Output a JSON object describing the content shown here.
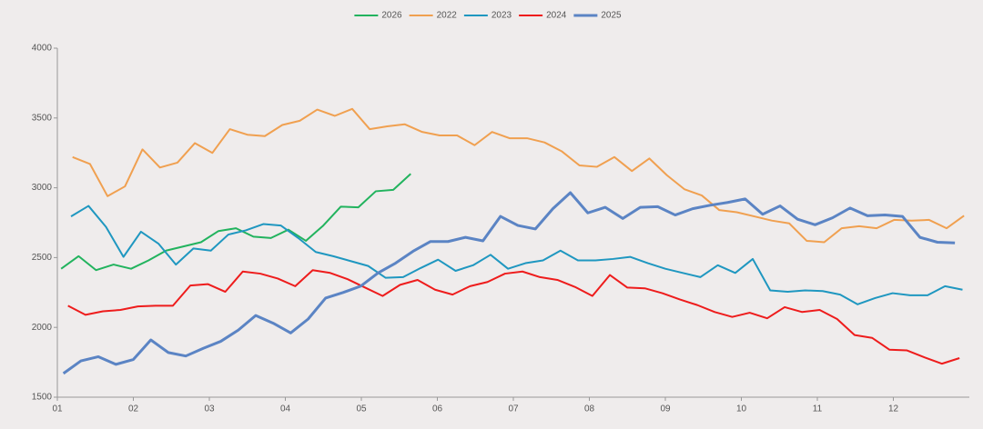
{
  "chart_data": {
    "type": "line",
    "xlim": [
      1,
      13
    ],
    "xticks": [
      {
        "value": 1,
        "label": "01"
      },
      {
        "value": 2,
        "label": "02"
      },
      {
        "value": 3,
        "label": "03"
      },
      {
        "value": 4,
        "label": "04"
      },
      {
        "value": 5,
        "label": "05"
      },
      {
        "value": 6,
        "label": "06"
      },
      {
        "value": 7,
        "label": "07"
      },
      {
        "value": 8,
        "label": "08"
      },
      {
        "value": 9,
        "label": "09"
      },
      {
        "value": 10,
        "label": "10"
      },
      {
        "value": 11,
        "label": "11"
      },
      {
        "value": 12,
        "label": "12"
      }
    ],
    "ylim": [
      1500,
      4000
    ],
    "yticks": [
      1500,
      2000,
      2500,
      3000,
      3500,
      4000
    ],
    "legend": "top",
    "series": [
      {
        "name": "2026",
        "color": "#22b35e",
        "width": 2,
        "x": [
          1.05,
          1.28,
          1.51,
          1.74,
          1.97,
          2.2,
          2.43,
          2.66,
          2.89,
          3.12,
          3.35,
          3.58,
          3.81,
          4.04,
          4.27,
          4.5,
          4.73,
          4.96,
          5.19,
          5.42,
          5.65
        ],
        "values": [
          2420,
          2510,
          2410,
          2450,
          2420,
          2480,
          2550,
          2580,
          2610,
          2690,
          2710,
          2650,
          2640,
          2700,
          2620,
          2730,
          2865,
          2860,
          2975,
          2985,
          3100
        ]
      },
      {
        "name": "2022",
        "color": "#f0a050",
        "width": 2,
        "x": [
          1.2,
          1.43,
          1.66,
          1.89,
          2.12,
          2.35,
          2.58,
          2.81,
          3.04,
          3.27,
          3.5,
          3.73,
          3.96,
          4.19,
          4.42,
          4.65,
          4.88,
          5.11,
          5.34,
          5.57,
          5.8,
          6.03,
          6.26,
          6.49,
          6.72,
          6.95,
          7.18,
          7.41,
          7.64,
          7.87,
          8.1,
          8.33,
          8.56,
          8.79,
          9.02,
          9.25,
          9.48,
          9.71,
          9.94,
          10.17,
          10.4,
          10.63,
          10.86,
          11.09,
          11.32,
          11.55,
          11.78,
          12.01,
          12.24,
          12.47,
          12.7,
          12.93
        ],
        "values": [
          3220,
          3170,
          2940,
          3010,
          3275,
          3145,
          3180,
          3320,
          3250,
          3420,
          3380,
          3370,
          3450,
          3480,
          3560,
          3515,
          3565,
          3420,
          3440,
          3455,
          3400,
          3375,
          3375,
          3305,
          3400,
          3355,
          3355,
          3325,
          3260,
          3160,
          3150,
          3220,
          3120,
          3210,
          3090,
          2990,
          2945,
          2840,
          2825,
          2795,
          2765,
          2745,
          2620,
          2610,
          2710,
          2725,
          2710,
          2770,
          2765,
          2770,
          2710,
          2800
        ]
      },
      {
        "name": "2023",
        "color": "#1f97c0",
        "width": 2,
        "x": [
          1.18,
          1.41,
          1.64,
          1.87,
          2.1,
          2.33,
          2.56,
          2.79,
          3.02,
          3.25,
          3.48,
          3.71,
          3.94,
          4.17,
          4.4,
          4.63,
          4.86,
          5.09,
          5.32,
          5.55,
          5.78,
          6.01,
          6.24,
          6.47,
          6.7,
          6.93,
          7.16,
          7.39,
          7.62,
          7.85,
          8.08,
          8.31,
          8.54,
          8.77,
          9.0,
          9.23,
          9.46,
          9.69,
          9.92,
          10.15,
          10.38,
          10.61,
          10.84,
          11.07,
          11.3,
          11.53,
          11.76,
          11.99,
          12.22,
          12.45,
          12.68,
          12.91
        ],
        "values": [
          2795,
          2870,
          2720,
          2505,
          2685,
          2600,
          2450,
          2565,
          2550,
          2665,
          2695,
          2740,
          2730,
          2640,
          2540,
          2510,
          2475,
          2440,
          2355,
          2360,
          2425,
          2485,
          2405,
          2445,
          2520,
          2420,
          2460,
          2480,
          2550,
          2480,
          2480,
          2490,
          2505,
          2460,
          2420,
          2390,
          2360,
          2445,
          2390,
          2490,
          2265,
          2255,
          2265,
          2260,
          2235,
          2165,
          2210,
          2245,
          2230,
          2230,
          2295,
          2270
        ]
      },
      {
        "name": "2024",
        "color": "#ee1c1c",
        "width": 2,
        "x": [
          1.14,
          1.37,
          1.6,
          1.83,
          2.06,
          2.29,
          2.52,
          2.75,
          2.98,
          3.21,
          3.44,
          3.67,
          3.9,
          4.13,
          4.36,
          4.59,
          4.82,
          5.05,
          5.28,
          5.51,
          5.74,
          5.97,
          6.2,
          6.43,
          6.66,
          6.89,
          7.12,
          7.35,
          7.58,
          7.81,
          8.04,
          8.27,
          8.5,
          8.73,
          8.96,
          9.19,
          9.42,
          9.65,
          9.88,
          10.11,
          10.34,
          10.57,
          10.8,
          11.03,
          11.26,
          11.49,
          11.72,
          11.95,
          12.18,
          12.41,
          12.64,
          12.87
        ],
        "values": [
          2155,
          2090,
          2115,
          2125,
          2150,
          2155,
          2155,
          2300,
          2310,
          2255,
          2400,
          2385,
          2350,
          2295,
          2410,
          2390,
          2345,
          2285,
          2225,
          2305,
          2340,
          2270,
          2235,
          2295,
          2325,
          2385,
          2400,
          2360,
          2340,
          2290,
          2225,
          2375,
          2285,
          2280,
          2245,
          2200,
          2160,
          2110,
          2075,
          2105,
          2065,
          2145,
          2110,
          2125,
          2060,
          1945,
          1925,
          1840,
          1835,
          1785,
          1740,
          1780
        ]
      },
      {
        "name": "2025",
        "color": "#5b84c4",
        "width": 3,
        "x": [
          1.08,
          1.31,
          1.54,
          1.77,
          2.0,
          2.23,
          2.46,
          2.69,
          2.92,
          3.15,
          3.38,
          3.61,
          3.84,
          4.07,
          4.3,
          4.53,
          4.76,
          4.99,
          5.22,
          5.45,
          5.68,
          5.91,
          6.14,
          6.37,
          6.6,
          6.83,
          7.06,
          7.29,
          7.52,
          7.75,
          7.98,
          8.21,
          8.44,
          8.67,
          8.9,
          9.13,
          9.36,
          9.59,
          9.82,
          10.05,
          10.28,
          10.51,
          10.74,
          10.97,
          11.2,
          11.43,
          11.66,
          11.89,
          12.12,
          12.35,
          12.58,
          12.81
        ],
        "values": [
          1670,
          1760,
          1790,
          1735,
          1770,
          1910,
          1820,
          1795,
          1850,
          1900,
          1980,
          2085,
          2030,
          1960,
          2060,
          2210,
          2250,
          2295,
          2390,
          2460,
          2545,
          2615,
          2615,
          2645,
          2620,
          2795,
          2730,
          2705,
          2850,
          2965,
          2820,
          2860,
          2780,
          2860,
          2865,
          2805,
          2850,
          2875,
          2895,
          2920,
          2810,
          2870,
          2775,
          2735,
          2785,
          2855,
          2800,
          2805,
          2795,
          2645,
          2610,
          2605
        ]
      }
    ]
  }
}
